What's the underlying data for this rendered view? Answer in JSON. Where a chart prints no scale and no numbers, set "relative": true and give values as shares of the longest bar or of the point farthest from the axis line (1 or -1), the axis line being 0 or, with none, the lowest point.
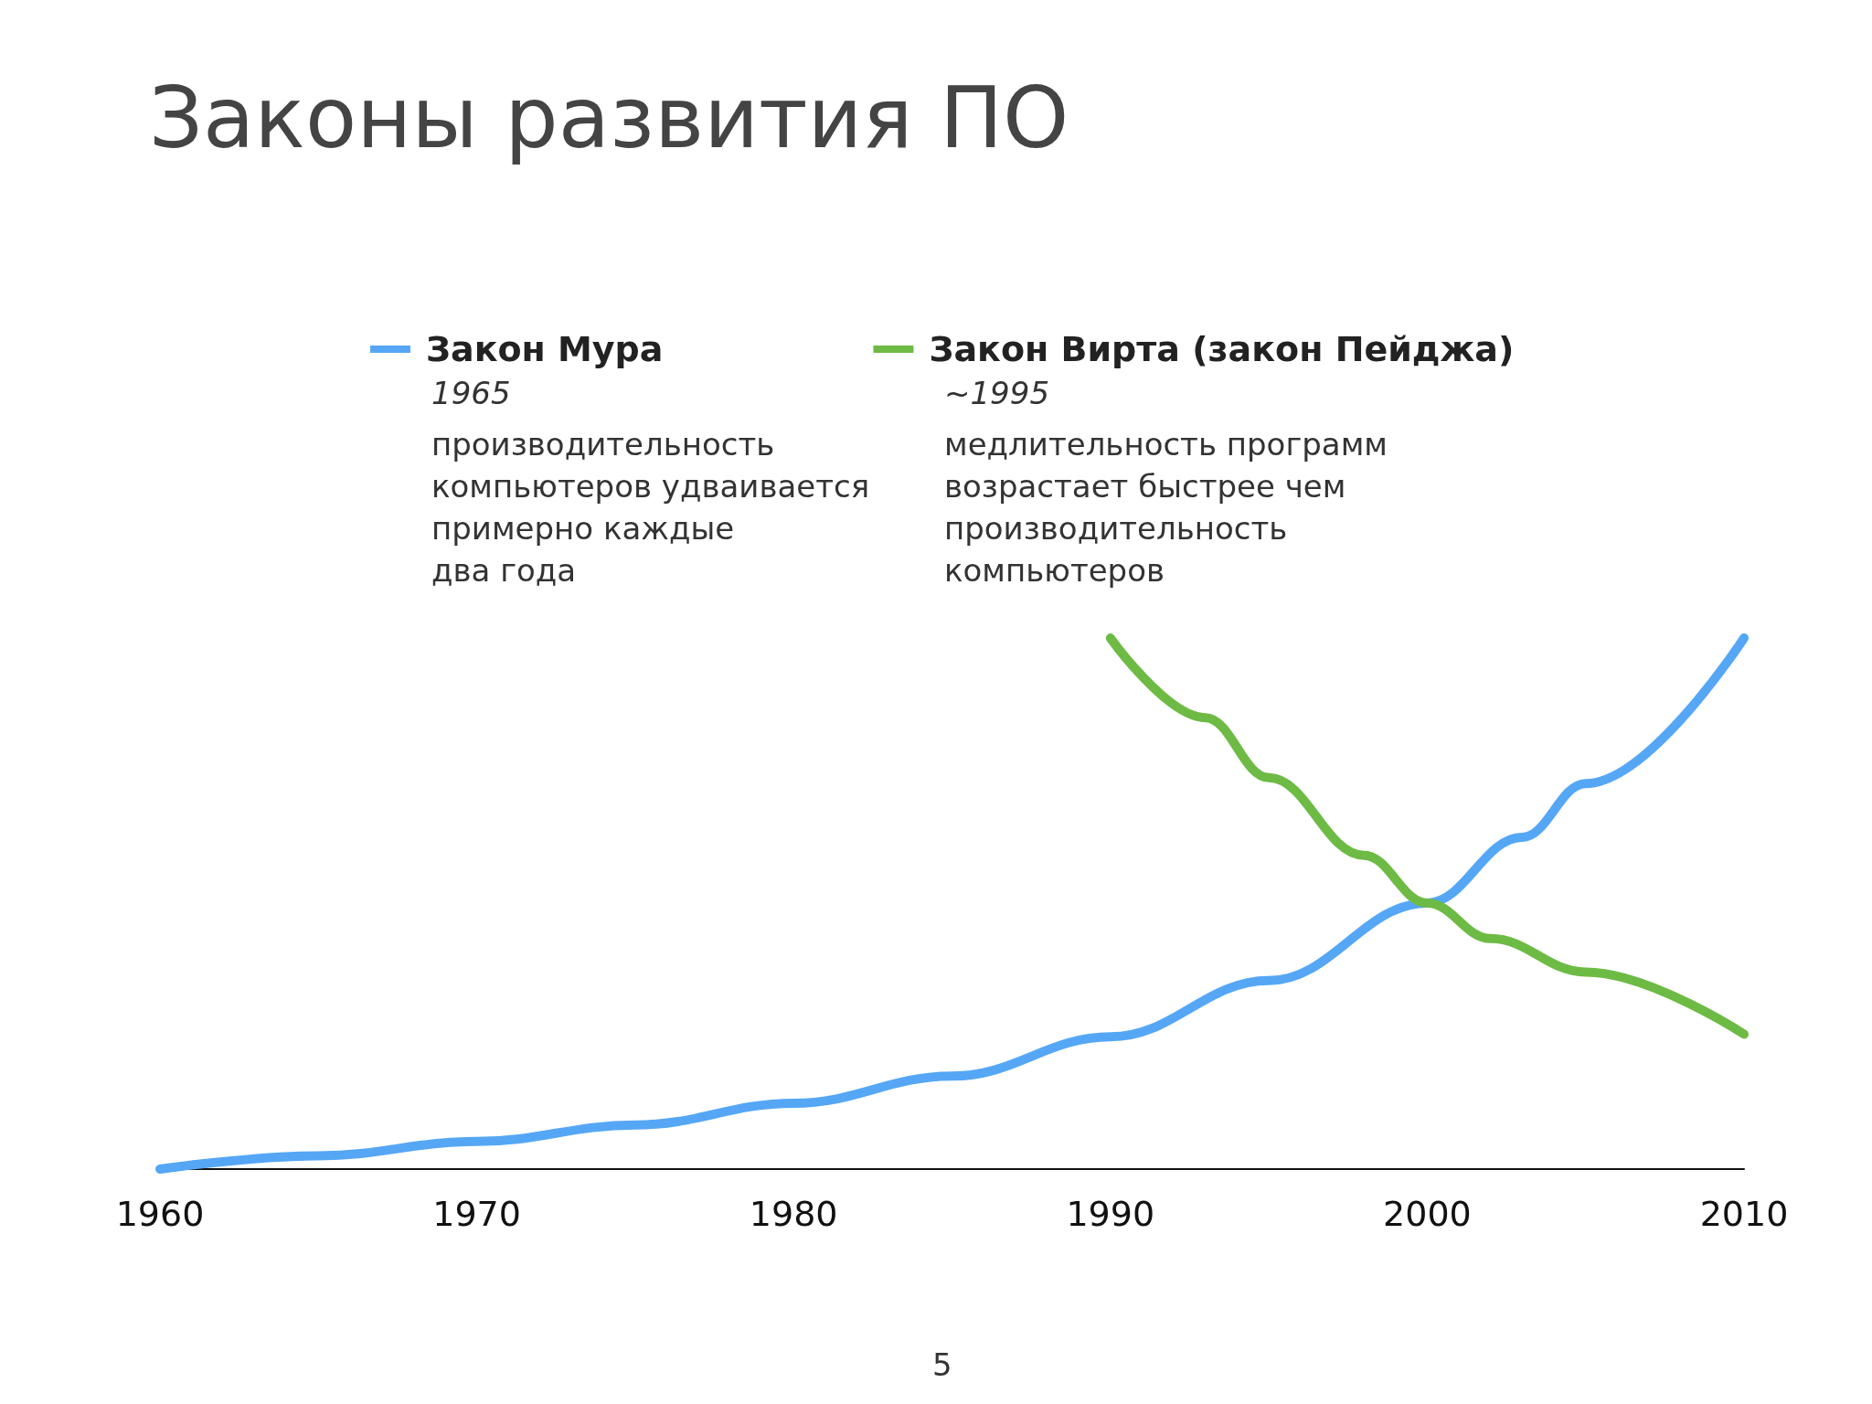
{
  "chart_data": {
    "type": "line",
    "title": "Законы развития ПО",
    "relative": true,
    "xlim": [
      1960,
      2010
    ],
    "xticks": [
      1960,
      1970,
      1980,
      1990,
      2000,
      2010
    ],
    "grid": false,
    "legend": "top",
    "marker": "none",
    "line_style": "solid",
    "series": [
      {
        "name": "Закон Мура",
        "color": "#55a7f5",
        "x": [
          1960,
          1965,
          1970,
          1975,
          1980,
          1985,
          1990,
          1995,
          2000,
          2003,
          2005,
          2010
        ],
        "values": [
          0,
          0.025,
          0.052,
          0.083,
          0.124,
          0.175,
          0.249,
          0.355,
          0.501,
          0.625,
          0.726,
          1
        ]
      },
      {
        "name": "Закон Вирта (закон Пейджа)",
        "color": "#6dbb45",
        "x": [
          1990,
          1993,
          1995,
          1998,
          2000,
          2002,
          2005,
          2010
        ],
        "values": [
          1,
          0.85,
          0.737,
          0.591,
          0.501,
          0.434,
          0.371,
          0.254
        ]
      }
    ],
    "annotations": [
      "1965",
      "производительность\nкомпьютеров удваивается\nпримерно каждые\nдва года",
      "~1995",
      "медлительность программ\nвозрастает быстрее чем\nпроизводительность\nкомпьютеров",
      "5"
    ]
  }
}
